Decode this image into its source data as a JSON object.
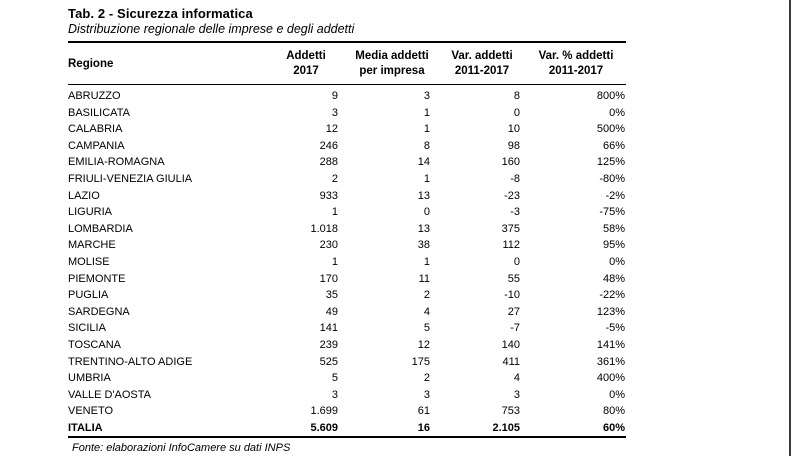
{
  "page": {
    "title": "Tab. 2 - Sicurezza informatica",
    "subtitle": "Distribuzione regionale delle imprese e degli addetti",
    "source_note": "Fonte: elaborazioni InfoCamere su dati INPS"
  },
  "colors": {
    "text": "#000000",
    "page_edge_line": "#3a3a3a",
    "background": "#ffffff"
  },
  "table": {
    "columns": [
      {
        "label": "Regione"
      },
      {
        "label": "Addetti\n2017"
      },
      {
        "label": "Media addetti\nper impresa"
      },
      {
        "label": "Var. addetti\n2011-2017"
      },
      {
        "label": "Var. % addetti\n2011-2017"
      }
    ],
    "rows": [
      [
        "ABRUZZO",
        "9",
        "3",
        "8",
        "800%"
      ],
      [
        "BASILICATA",
        "3",
        "1",
        "0",
        "0%"
      ],
      [
        "CALABRIA",
        "12",
        "1",
        "10",
        "500%"
      ],
      [
        "CAMPANIA",
        "246",
        "8",
        "98",
        "66%"
      ],
      [
        "EMILIA-ROMAGNA",
        "288",
        "14",
        "160",
        "125%"
      ],
      [
        "FRIULI-VENEZIA GIULIA",
        "2",
        "1",
        "-8",
        "-80%"
      ],
      [
        "LAZIO",
        "933",
        "13",
        "-23",
        "-2%"
      ],
      [
        "LIGURIA",
        "1",
        "0",
        "-3",
        "-75%"
      ],
      [
        "LOMBARDIA",
        "1.018",
        "13",
        "375",
        "58%"
      ],
      [
        "MARCHE",
        "230",
        "38",
        "112",
        "95%"
      ],
      [
        "MOLISE",
        "1",
        "1",
        "0",
        "0%"
      ],
      [
        "PIEMONTE",
        "170",
        "11",
        "55",
        "48%"
      ],
      [
        "PUGLIA",
        "35",
        "2",
        "-10",
        "-22%"
      ],
      [
        "SARDEGNA",
        "49",
        "4",
        "27",
        "123%"
      ],
      [
        "SICILIA",
        "141",
        "5",
        "-7",
        "-5%"
      ],
      [
        "TOSCANA",
        "239",
        "12",
        "140",
        "141%"
      ],
      [
        "TRENTINO-ALTO ADIGE",
        "525",
        "175",
        "411",
        "361%"
      ],
      [
        "UMBRIA",
        "5",
        "2",
        "4",
        "400%"
      ],
      [
        "VALLE D'AOSTA",
        "3",
        "3",
        "3",
        "0%"
      ],
      [
        "VENETO",
        "1.699",
        "61",
        "753",
        "80%"
      ]
    ],
    "total_row": [
      "ITALIA",
      "5.609",
      "16",
      "2.105",
      "60%"
    ]
  }
}
